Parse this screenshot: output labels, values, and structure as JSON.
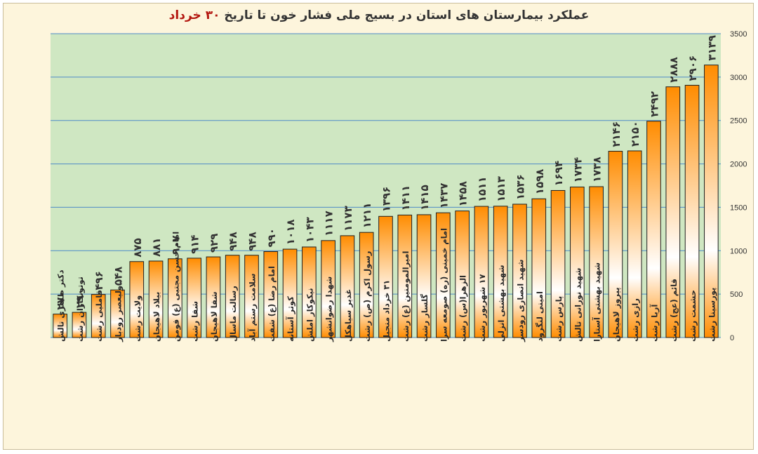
{
  "title": {
    "main": "عملکرد بیمارستان های استان در بسیج ملی فشار خون تا تاریخ",
    "date": "۳۰ خرداد"
  },
  "colors": {
    "plot_bg": "#cfe7c2",
    "grid": "#4f8ac7",
    "bar_edge": "#ff8c00",
    "bar_center": "#ffffff",
    "title_accent": "#b3160f"
  },
  "chart_data": {
    "type": "bar",
    "title": "عملکرد بیمارستان های استان در بسیج ملی فشار خون تا تاریخ ۳۰ خرداد",
    "xlabel": "",
    "ylabel": "",
    "ylim": [
      0,
      3500
    ],
    "yticks": [
      0,
      500,
      1000,
      1500,
      2000,
      2500,
      3000,
      3500
    ],
    "y_axis_position": "right",
    "grid": true,
    "legend": "none",
    "categories": [
      "دکتر طاهری تالش",
      "توتونکاران رشت",
      "قاملیی رشت",
      "ولیعصر رودبار",
      "ولایت رشت",
      "بیلاد لاهیجان",
      "امام حسن مجتبی (ع) فومن",
      "شفا رشت",
      "شفا لاهیجان",
      "رسالت ماسال",
      "سلامت رستم آباد",
      "امام رضا (ع) شفت",
      "کوثر آستانه",
      "نیکوکار املش",
      "شهدا رضوانشهر",
      "غدیر سیاهکل",
      "رسول اکرم (ص) رشت",
      "۳۱ خرداد منجیل",
      "امیرالمومنین (ع) رشت",
      "گلسار رشت",
      "امام خمینی (ره) صومعه سرا",
      "الزهرا(س) رشت",
      "۱۷ شهریور رشت",
      "شهید بهشتی انزلی",
      "شهید انصاری رودسر",
      "امینی لنگرود",
      "پارس رشت",
      "شهید نورانی تالش",
      "شهید بهشتی آستارا",
      "پیروز لاهیجان",
      "رازی رشت",
      "آریا رشت",
      "قائم (عج) رشت",
      "حشمت رشت",
      "پورسینا رشت"
    ],
    "values": [
      270,
      290,
      496,
      548,
      875,
      881,
      907,
      914,
      929,
      948,
      948,
      990,
      1018,
      1043,
      1117,
      1173,
      1211,
      1396,
      1411,
      1415,
      1437,
      1458,
      1511,
      1513,
      1536,
      1598,
      1694,
      1734,
      1738,
      2146,
      2150,
      2492,
      2888,
      2906,
      3139
    ],
    "data_labels": [
      "۲۷۰",
      "۲۹۰",
      "۴۹۶",
      "۵۴۸",
      "۸۷۵",
      "۸۸۱",
      "۹۰۷",
      "۹۱۴",
      "۹۲۹",
      "۹۴۸",
      "۹۴۸",
      "۹۹۰",
      "۱۰۱۸",
      "۱۰۴۳",
      "۱۱۱۷",
      "۱۱۷۳",
      "۱۲۱۱",
      "۱۳۹۶",
      "۱۴۱۱",
      "۱۴۱۵",
      "۱۴۳۷",
      "۱۴۵۸",
      "۱۵۱۱",
      "۱۵۱۳",
      "۱۵۳۶",
      "۱۵۹۸",
      "۱۶۹۴",
      "۱۷۳۴",
      "۱۷۳۸",
      "۲۱۴۶",
      "۲۱۵۰",
      "۲۴۹۲",
      "۲۸۸۸",
      "۲۹۰۶",
      "۳۱۳۹"
    ]
  }
}
